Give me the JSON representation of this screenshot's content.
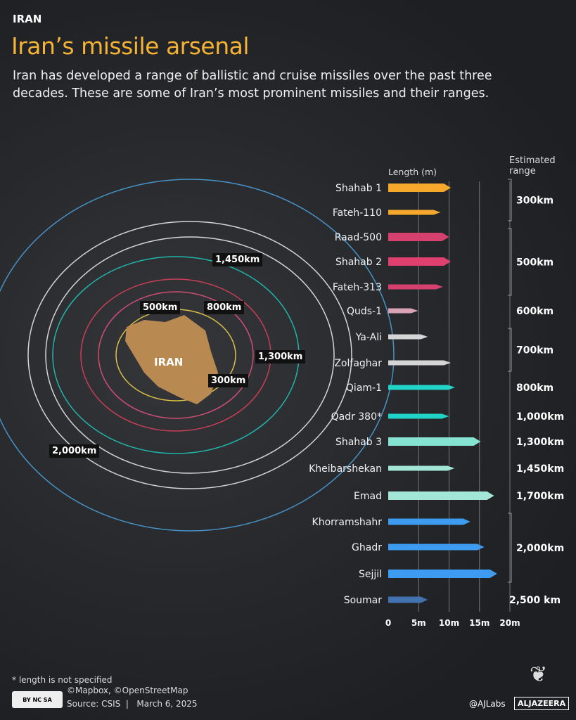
{
  "header": {
    "kicker": "IRAN",
    "title": "Iran’s missile arsenal",
    "subtitle": "Iran has developed a range of ballistic and cruise missiles over the past three decades. These are some of Iran’s most prominent missiles and their ranges."
  },
  "map": {
    "country_label": "IRAN",
    "range_labels": [
      "300km",
      "500km",
      "800km",
      "1,300km",
      "1,450km",
      "2,000km"
    ],
    "ring_colors": [
      "#f2d04a",
      "#e0507a",
      "#d8405a",
      "#1fc4b8",
      "#e8e8e8",
      "#e8e8e8",
      "#4a9fd8"
    ],
    "country_color": "#b88a52"
  },
  "chart_data": {
    "type": "bar",
    "xlabel": "Length (m)",
    "range_header": "Estimated range",
    "xlim": [
      0,
      20
    ],
    "ticks": [
      "0",
      "5m",
      "10m",
      "15m",
      "20m"
    ],
    "tick_values": [
      0,
      5,
      10,
      15,
      20
    ],
    "grid": true,
    "categories": [
      "Shahab 1",
      "Fateh-110",
      "Raad-500",
      "Shahab 2",
      "Fateh-313",
      "Quds-1",
      "Ya-Ali",
      "Zolfaghar",
      "Qiam-1",
      "Qadr 380*",
      "Shahab 3",
      "Kheibarshekan",
      "Emad",
      "Khorramshahr",
      "Ghadr",
      "Sejjil",
      "Soumar"
    ],
    "values": [
      10.3,
      8.6,
      10,
      10.3,
      9,
      4.9,
      6.5,
      10.3,
      11,
      10,
      15.2,
      10.9,
      17.4,
      13.5,
      15.8,
      17.9,
      6.5
    ],
    "colors": [
      "#f5a82c",
      "#f5a82c",
      "#d6406e",
      "#e0406e",
      "#d6406e",
      "#d9a3b5",
      "#d5d5d5",
      "#d5d5d5",
      "#20d4c8",
      "#20d4c8",
      "#86e3d2",
      "#a3e6d8",
      "#a3e6d8",
      "#3d9cf0",
      "#3d9cf0",
      "#3d9cf0",
      "#4272b0"
    ],
    "range_groups": [
      {
        "label": "300km",
        "rows": [
          0,
          1
        ],
        "bracket": true
      },
      {
        "label": "500km",
        "rows": [
          2,
          4
        ],
        "bracket": true
      },
      {
        "label": "600km",
        "rows": [
          5,
          5
        ],
        "bracket": false
      },
      {
        "label": "700km",
        "rows": [
          6,
          7
        ],
        "bracket": true
      },
      {
        "label": "800km",
        "rows": [
          8,
          8
        ],
        "bracket": false
      },
      {
        "label": "1,000km",
        "rows": [
          9,
          9
        ],
        "bracket": false
      },
      {
        "label": "1,300km",
        "rows": [
          10,
          10
        ],
        "bracket": false
      },
      {
        "label": "1,450km",
        "rows": [
          11,
          11
        ],
        "bracket": false
      },
      {
        "label": "1,700km",
        "rows": [
          12,
          12
        ],
        "bracket": false
      },
      {
        "label": "2,000km",
        "rows": [
          13,
          15
        ],
        "bracket": true
      },
      {
        "label": "2,500 km",
        "rows": [
          16,
          16
        ],
        "bracket": false
      }
    ]
  },
  "footer": {
    "note": "* length is not specified",
    "credits": "©Mapbox, ©OpenStreetMap",
    "source": "Source: CSIS  |   March 6, 2025",
    "license": "BY NC SA",
    "handle": "@AJLabs",
    "brand": "ALJAZEERA"
  }
}
